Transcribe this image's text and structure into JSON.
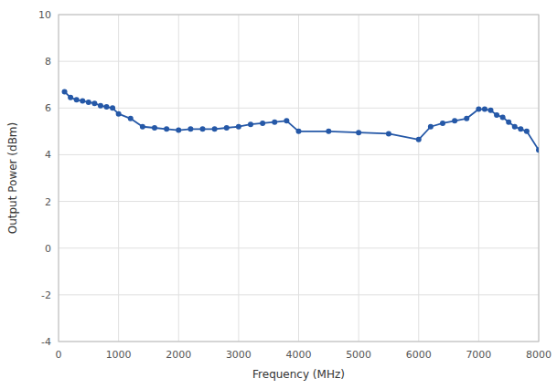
{
  "chart_data": {
    "type": "line",
    "xlabel": "Frequency (MHz)",
    "ylabel": "Output Power (dBm)",
    "x": [
      100,
      200,
      300,
      400,
      500,
      600,
      700,
      800,
      900,
      1000,
      1200,
      1400,
      1600,
      1800,
      2000,
      2200,
      2400,
      2600,
      2800,
      3000,
      3200,
      3400,
      3600,
      3800,
      4000,
      4500,
      5000,
      5500,
      6000,
      6200,
      6400,
      6600,
      6800,
      7000,
      7100,
      7200,
      7300,
      7400,
      7500,
      7600,
      7700,
      7800,
      8000
    ],
    "values": [
      6.7,
      6.45,
      6.35,
      6.3,
      6.25,
      6.2,
      6.1,
      6.05,
      6.0,
      5.75,
      5.55,
      5.2,
      5.15,
      5.1,
      5.05,
      5.1,
      5.1,
      5.1,
      5.15,
      5.2,
      5.3,
      5.35,
      5.4,
      5.45,
      5.0,
      5.0,
      4.95,
      4.9,
      4.65,
      5.2,
      5.35,
      5.45,
      5.55,
      5.95,
      5.95,
      5.9,
      5.7,
      5.6,
      5.4,
      5.2,
      5.1,
      5.0,
      4.2
    ],
    "color": "#2558a7",
    "marker": "circle",
    "xlim": [
      0,
      8000
    ],
    "ylim": [
      -4,
      10
    ],
    "xticks": [
      0,
      1000,
      2000,
      3000,
      4000,
      5000,
      6000,
      7000,
      8000
    ],
    "yticks": [
      -4,
      -2,
      0,
      2,
      4,
      6,
      8,
      10
    ],
    "grid": true
  }
}
